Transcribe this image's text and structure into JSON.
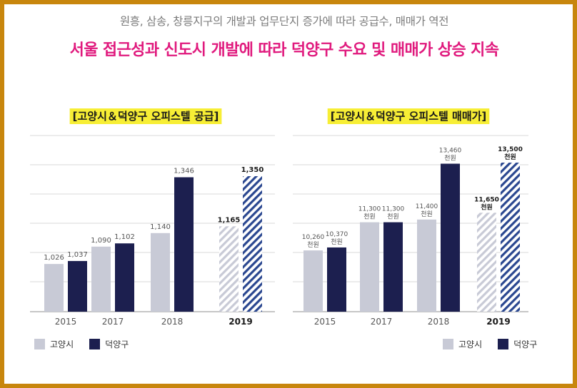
{
  "subtitle": "원흥, 삼송, 창릉지구의 개발과 업무단지 증가에 따라 공급수, 매매가 역전",
  "headline": "서울 접근성과 신도시 개발에 따라 덕양구 수요 및 매매가 상승 지속",
  "colors": {
    "border": "#c8860d",
    "headline": "#e0197d",
    "goyang": "#c8cad6",
    "deokyang": "#1c1f4f",
    "title_highlight": "#f7ee35",
    "grid": "#d9d9d9"
  },
  "legend": {
    "goyang": "고양시",
    "deokyang": "덕양구"
  },
  "chart_data": [
    {
      "type": "bar",
      "title": "[고양시＆덕양구 오피스텔 공급]",
      "categories": [
        "2015",
        "2017",
        "2018",
        "2019"
      ],
      "ylim": [
        850,
        1500
      ],
      "grid": true,
      "legend_position": "bottom-left",
      "series": [
        {
          "name": "고양시",
          "values": [
            1026,
            1090,
            1140,
            1165
          ],
          "labels": [
            "1,026",
            "1,090",
            "1,140",
            "1,165"
          ]
        },
        {
          "name": "덕양구",
          "values": [
            1037,
            1102,
            1346,
            1350
          ],
          "labels": [
            "1,037",
            "1,102",
            "1,346",
            "1,350"
          ]
        }
      ],
      "projected_category": "2019"
    },
    {
      "type": "bar",
      "title": "[고양시＆덕양구 오피스텔 매매가]",
      "categories": [
        "2015",
        "2017",
        "2018",
        "2019"
      ],
      "ylim": [
        8000,
        14500
      ],
      "grid": true,
      "legend_position": "bottom-right",
      "unit": "천원",
      "series": [
        {
          "name": "고양시",
          "values": [
            10260,
            11300,
            11400,
            11650
          ],
          "labels": [
            "10,260",
            "11,300",
            "11,400",
            "11,650"
          ]
        },
        {
          "name": "덕양구",
          "values": [
            10370,
            11300,
            13460,
            13500
          ],
          "labels": [
            "10,370",
            "11,300",
            "13,460",
            "13,500"
          ]
        }
      ],
      "projected_category": "2019"
    }
  ]
}
